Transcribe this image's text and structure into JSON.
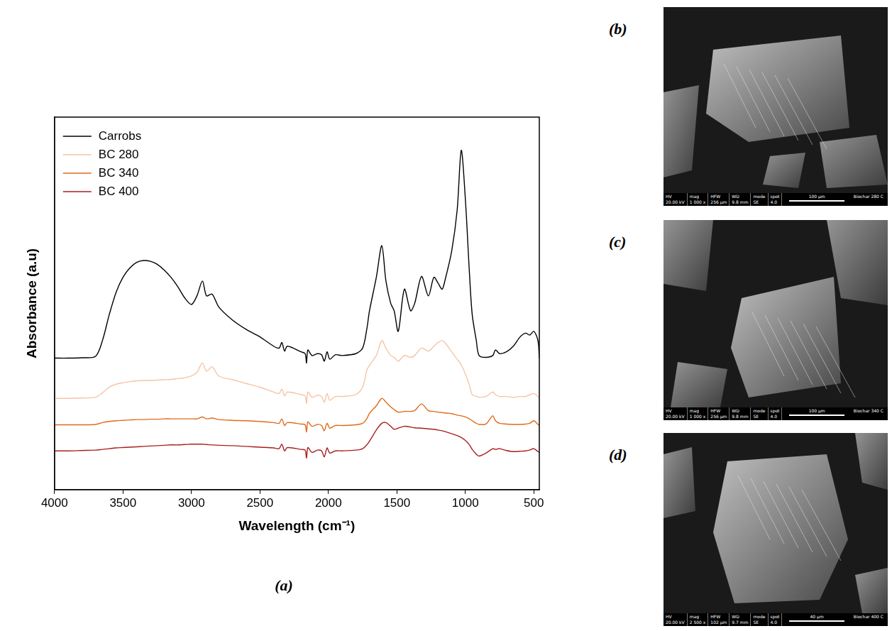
{
  "chart_data": {
    "type": "line",
    "panel_label": "(a)",
    "x_label": "Wavelength (cm⁻¹)",
    "y_label": "Absorbance (a.u)",
    "xlim": [
      4000,
      460
    ],
    "xticks": [
      4000,
      3500,
      3000,
      2500,
      2000,
      1500,
      1000,
      500
    ],
    "ylim": [
      0,
      1
    ],
    "tick_labels": "x",
    "grid": false,
    "legend": "upper left",
    "x": [
      4000,
      3900,
      3800,
      3700,
      3650,
      3600,
      3550,
      3500,
      3450,
      3400,
      3350,
      3300,
      3250,
      3200,
      3150,
      3100,
      3050,
      3000,
      2960,
      2920,
      2890,
      2850,
      2800,
      2700,
      2600,
      2500,
      2400,
      2360,
      2340,
      2320,
      2300,
      2200,
      2170,
      2160,
      2150,
      2120,
      2080,
      2050,
      2030,
      2010,
      1990,
      1950,
      1900,
      1800,
      1750,
      1720,
      1700,
      1650,
      1610,
      1580,
      1545,
      1520,
      1490,
      1445,
      1400,
      1370,
      1320,
      1270,
      1230,
      1200,
      1170,
      1150,
      1100,
      1060,
      1030,
      1000,
      970,
      950,
      920,
      900,
      850,
      800,
      780,
      750,
      700,
      650,
      600,
      560,
      530,
      500,
      470,
      460
    ],
    "series": [
      {
        "name": "Carrobs",
        "color": "#000000",
        "values": [
          0.353,
          0.353,
          0.354,
          0.358,
          0.4,
          0.47,
          0.53,
          0.57,
          0.595,
          0.61,
          0.615,
          0.613,
          0.605,
          0.59,
          0.57,
          0.545,
          0.515,
          0.497,
          0.52,
          0.56,
          0.52,
          0.525,
          0.49,
          0.455,
          0.43,
          0.41,
          0.385,
          0.38,
          0.395,
          0.372,
          0.385,
          0.37,
          0.365,
          0.34,
          0.375,
          0.36,
          0.365,
          0.362,
          0.345,
          0.37,
          0.35,
          0.362,
          0.36,
          0.365,
          0.38,
          0.43,
          0.48,
          0.57,
          0.655,
          0.56,
          0.5,
          0.48,
          0.425,
          0.538,
          0.48,
          0.5,
          0.572,
          0.52,
          0.57,
          0.555,
          0.538,
          0.56,
          0.64,
          0.75,
          0.911,
          0.78,
          0.58,
          0.47,
          0.4,
          0.36,
          0.355,
          0.36,
          0.375,
          0.365,
          0.37,
          0.385,
          0.41,
          0.42,
          0.415,
          0.425,
          0.4,
          0.353
        ]
      },
      {
        "name": "BC 280",
        "color": "#f5c4a6",
        "values": [
          0.245,
          0.245,
          0.246,
          0.248,
          0.26,
          0.275,
          0.283,
          0.287,
          0.29,
          0.292,
          0.293,
          0.293,
          0.294,
          0.295,
          0.296,
          0.298,
          0.3,
          0.305,
          0.315,
          0.34,
          0.318,
          0.33,
          0.305,
          0.295,
          0.285,
          0.275,
          0.262,
          0.258,
          0.27,
          0.252,
          0.262,
          0.255,
          0.252,
          0.232,
          0.262,
          0.248,
          0.253,
          0.25,
          0.235,
          0.258,
          0.24,
          0.25,
          0.25,
          0.255,
          0.275,
          0.32,
          0.334,
          0.36,
          0.4,
          0.38,
          0.36,
          0.355,
          0.345,
          0.36,
          0.355,
          0.36,
          0.38,
          0.372,
          0.385,
          0.395,
          0.4,
          0.395,
          0.37,
          0.35,
          0.335,
          0.31,
          0.28,
          0.255,
          0.25,
          0.248,
          0.25,
          0.262,
          0.255,
          0.25,
          0.25,
          0.248,
          0.25,
          0.25,
          0.255,
          0.258,
          0.25,
          0.245
        ]
      },
      {
        "name": "BC 340",
        "color": "#e06a1b",
        "values": [
          0.174,
          0.174,
          0.174,
          0.175,
          0.18,
          0.183,
          0.185,
          0.186,
          0.187,
          0.188,
          0.188,
          0.189,
          0.189,
          0.19,
          0.19,
          0.19,
          0.19,
          0.19,
          0.19,
          0.195,
          0.19,
          0.192,
          0.188,
          0.186,
          0.185,
          0.183,
          0.18,
          0.178,
          0.19,
          0.172,
          0.18,
          0.176,
          0.174,
          0.155,
          0.182,
          0.17,
          0.175,
          0.172,
          0.158,
          0.178,
          0.165,
          0.172,
          0.172,
          0.174,
          0.178,
          0.19,
          0.205,
          0.225,
          0.245,
          0.235,
          0.222,
          0.215,
          0.208,
          0.21,
          0.21,
          0.212,
          0.23,
          0.212,
          0.21,
          0.208,
          0.207,
          0.206,
          0.204,
          0.2,
          0.198,
          0.195,
          0.19,
          0.185,
          0.178,
          0.175,
          0.176,
          0.198,
          0.185,
          0.178,
          0.176,
          0.175,
          0.175,
          0.176,
          0.178,
          0.185,
          0.175,
          0.172
        ]
      },
      {
        "name": "BC 400",
        "color": "#a81f1f",
        "values": [
          0.104,
          0.104,
          0.105,
          0.106,
          0.108,
          0.11,
          0.112,
          0.113,
          0.114,
          0.115,
          0.116,
          0.117,
          0.118,
          0.119,
          0.12,
          0.12,
          0.121,
          0.122,
          0.122,
          0.122,
          0.121,
          0.12,
          0.119,
          0.118,
          0.116,
          0.114,
          0.112,
          0.11,
          0.122,
          0.104,
          0.113,
          0.108,
          0.106,
          0.085,
          0.113,
          0.1,
          0.106,
          0.104,
          0.088,
          0.112,
          0.098,
          0.104,
          0.104,
          0.106,
          0.11,
          0.12,
          0.13,
          0.16,
          0.178,
          0.18,
          0.17,
          0.162,
          0.165,
          0.17,
          0.168,
          0.166,
          0.165,
          0.163,
          0.162,
          0.16,
          0.158,
          0.156,
          0.15,
          0.145,
          0.14,
          0.132,
          0.12,
          0.108,
          0.095,
          0.09,
          0.098,
          0.11,
          0.108,
          0.11,
          0.105,
          0.102,
          0.103,
          0.104,
          0.106,
          0.11,
          0.102,
          0.1
        ]
      }
    ]
  },
  "images": [
    {
      "label": "(b)",
      "info_heads": [
        "HV",
        "mag",
        "HFW",
        "WD",
        "mode",
        "spot"
      ],
      "info_values": [
        "20.00 kV",
        "1 000 x",
        "256 µm",
        "9.8 mm",
        "SE",
        "4.0"
      ],
      "scale_bar": "100 µm",
      "caption": "Biochar 280 C"
    },
    {
      "label": "(c)",
      "info_heads": [
        "HV",
        "mag",
        "HFW",
        "WD",
        "mode",
        "spot"
      ],
      "info_values": [
        "20.00 kV",
        "1 000 x",
        "256 µm",
        "9.8 mm",
        "SE",
        "4.0"
      ],
      "scale_bar": "100 µm",
      "caption": "Biochar 340 C"
    },
    {
      "label": "(d)",
      "info_heads": [
        "HV",
        "mag",
        "HFW",
        "WD",
        "mode",
        "spot"
      ],
      "info_values": [
        "20.00 kV",
        "2 500 x",
        "102 µm",
        "9.7 mm",
        "SE",
        "4.0"
      ],
      "scale_bar": "40 µm",
      "caption": "Biochar 400 C"
    }
  ]
}
